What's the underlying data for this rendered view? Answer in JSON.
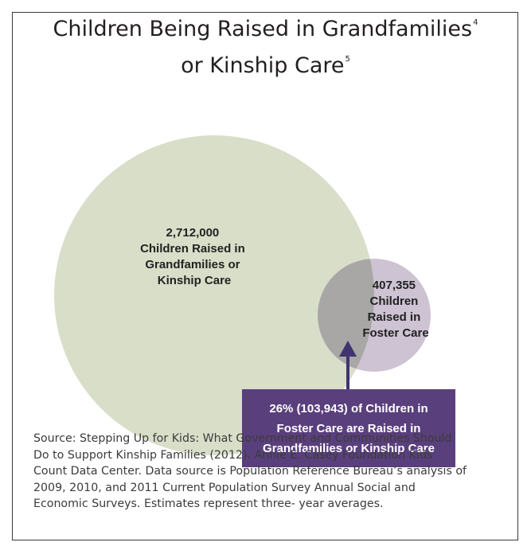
{
  "title": {
    "line1": "Children Being Raised in Grandfamilies",
    "footnote1": "4",
    "line2": "or Kinship Care",
    "footnote2": "5"
  },
  "circles": {
    "grandfamilies": {
      "lines": [
        "2,712,000",
        "Children Raised in",
        "Grandfamilies or",
        "Kinship Care"
      ],
      "value": 2712000,
      "color": "#d9dec9"
    },
    "foster": {
      "lines": [
        "407,355",
        "Children",
        "Raised in",
        "Foster Care"
      ],
      "value": 407355,
      "color": "#cdc3d2"
    },
    "overlap_color": "#a9a7a6"
  },
  "callout": {
    "lines": [
      "26% (103,943) of Children in",
      "Foster Care are Raised in",
      "Grandfamilies or Kinship Care"
    ],
    "color": "#5a3f7d",
    "arrow_color": "#3f3470"
  },
  "source": {
    "lines": [
      "Source: Stepping Up for Kids: What Government and Communities Should",
      "Do to Support Kinship Families (2012).  Annie E. Casey Foundation Kids",
      "Count Data Center. Data source is Population Reference Bureau’s analysis of",
      "2009, 2010, and 2011 Current Population Survey Annual Social and",
      "Economic Surveys. Estimates represent three- year averages."
    ]
  }
}
